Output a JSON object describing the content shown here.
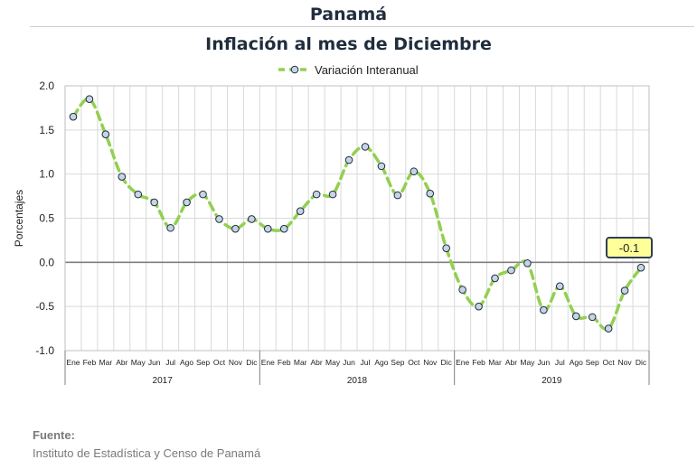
{
  "header": {
    "title": "Panamá",
    "subtitle": "Inflación al mes de Diciembre"
  },
  "chart_data": {
    "type": "line",
    "ylabel": "Porcentajes",
    "ylim": [
      -1.0,
      2.0
    ],
    "yticks": [
      "2.0",
      "1.5",
      "1.0",
      "0.5",
      "0.0",
      "-0.5",
      "-1.0"
    ],
    "ytick_values": [
      2.0,
      1.5,
      1.0,
      0.5,
      0.0,
      -0.5,
      -1.0
    ],
    "month_labels": [
      "Ene",
      "Feb",
      "Mar",
      "Abr",
      "May",
      "Jun",
      "Jul",
      "Ago",
      "Sep",
      "Oct",
      "Nov",
      "Dic"
    ],
    "years": [
      "2017",
      "2018",
      "2019"
    ],
    "legend_position": "top-center",
    "grid": true,
    "series": [
      {
        "name": "Variación Interanual",
        "color": "#92d050",
        "marker_color": "#c6d4e6",
        "values": [
          1.65,
          1.85,
          1.45,
          0.97,
          0.77,
          0.68,
          0.39,
          0.68,
          0.77,
          0.49,
          0.38,
          0.49,
          0.38,
          0.38,
          0.58,
          0.77,
          0.77,
          1.16,
          1.31,
          1.09,
          0.76,
          1.03,
          0.78,
          0.16,
          -0.31,
          -0.5,
          -0.18,
          -0.09,
          -0.01,
          -0.54,
          -0.27,
          -0.61,
          -0.62,
          -0.75,
          -0.32,
          -0.06
        ]
      }
    ],
    "annotation": {
      "text": "-0.1",
      "value": -0.06,
      "color": "#ffff99"
    }
  },
  "source": {
    "label": "Fuente:",
    "text": "Instituto de Estadística y Censo de Panamá"
  }
}
